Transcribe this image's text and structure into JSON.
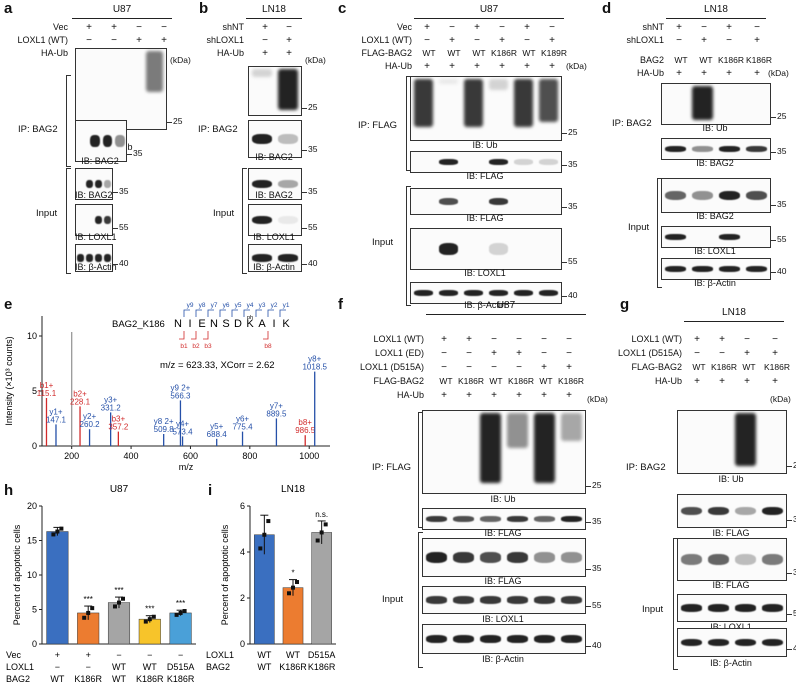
{
  "panels": {
    "a": {
      "label": "a",
      "cell_line": "U87",
      "rows": [
        {
          "label": "Vec",
          "signs": [
            "+",
            "+",
            "−",
            "−"
          ]
        },
        {
          "label": "LOXL1 (WT)",
          "signs": [
            "−",
            "−",
            "+",
            "+"
          ]
        },
        {
          "label": "HA-Ub",
          "signs": [
            "−",
            "+",
            "−",
            "+"
          ]
        }
      ],
      "kda": "(kDa)",
      "ip_label": "IP: BAG2",
      "input_label": "Input",
      "blots": [
        {
          "ib": "IB: Ub",
          "mw": "25"
        },
        {
          "ib": "IB: BAG2",
          "mw": "35"
        },
        {
          "ib": "IB: BAG2",
          "mw": "35"
        },
        {
          "ib": "IB: LOXL1",
          "mw": "55"
        },
        {
          "ib": "IB: β-Actin",
          "mw": "40"
        }
      ]
    },
    "b": {
      "label": "b",
      "cell_line": "LN18",
      "rows": [
        {
          "label": "shNT",
          "signs": [
            "+",
            "−"
          ]
        },
        {
          "label": "shLOXL1",
          "signs": [
            "−",
            "+"
          ]
        },
        {
          "label": "HA-Ub",
          "signs": [
            "+",
            "+"
          ]
        }
      ],
      "kda": "(kDa)",
      "ip_label": "IP: BAG2",
      "input_label": "Input",
      "blots": [
        {
          "ib": "IB: Ub",
          "mw": "25"
        },
        {
          "ib": "IB: BAG2",
          "mw": "35"
        },
        {
          "ib": "IB: BAG2",
          "mw": "35"
        },
        {
          "ib": "IB: LOXL1",
          "mw": "55"
        },
        {
          "ib": "IB: β-Actin",
          "mw": "40"
        }
      ]
    },
    "c": {
      "label": "c",
      "cell_line": "U87",
      "rows": [
        {
          "label": "Vec",
          "signs": [
            "+",
            "−",
            "+",
            "−",
            "+",
            "−"
          ]
        },
        {
          "label": "LOXL1 (WT)",
          "signs": [
            "−",
            "+",
            "−",
            "+",
            "−",
            "+"
          ]
        },
        {
          "label": "FLAG-BAG2",
          "signs": [
            "WT",
            "WT",
            "WT",
            "K186R",
            "WT",
            "K189R"
          ]
        },
        {
          "label": "HA-Ub",
          "signs": [
            "+",
            "+",
            "+",
            "+",
            "+",
            "+"
          ]
        }
      ],
      "kda": "(kDa)",
      "ip_label": "IP: FLAG",
      "input_label": "Input",
      "blots": [
        {
          "ib": "IB: Ub",
          "mw": "25"
        },
        {
          "ib": "IB: FLAG",
          "mw": "35"
        },
        {
          "ib": "IB: FLAG",
          "mw": "35"
        },
        {
          "ib": "IB: LOXL1",
          "mw": "55"
        },
        {
          "ib": "IB: β-Actin",
          "mw": "40"
        }
      ]
    },
    "d": {
      "label": "d",
      "cell_line": "LN18",
      "rows": [
        {
          "label": "shNT",
          "signs": [
            "+",
            "−",
            "+",
            "−"
          ]
        },
        {
          "label": "shLOXL1",
          "signs": [
            "−",
            "+",
            "−",
            "+"
          ]
        },
        {
          "label": "BAG2",
          "signs": [
            "WT",
            "WT",
            "K186R",
            "K186R"
          ]
        },
        {
          "label": "HA-Ub",
          "signs": [
            "+",
            "+",
            "+",
            "+"
          ]
        }
      ],
      "kda": "(kDa)",
      "ip_label": "IP: BAG2",
      "input_label": "Input",
      "blots": [
        {
          "ib": "IB: Ub",
          "mw": "25"
        },
        {
          "ib": "IB: BAG2",
          "mw": "35"
        },
        {
          "ib": "IB: BAG2",
          "mw": "35"
        },
        {
          "ib": "IB: LOXL1",
          "mw": "55"
        },
        {
          "ib": "IB: β-Actin",
          "mw": "40"
        }
      ]
    },
    "e": {
      "label": "e",
      "peptide_name": "BAG2_K186",
      "sequence": [
        "N",
        "I",
        "E",
        "N",
        "S",
        "D",
        "K",
        "A",
        "I",
        "K"
      ],
      "ph": "ph",
      "y_ions": [
        "y9",
        "y8",
        "y7",
        "y6",
        "y5",
        "y4",
        "y3",
        "y2",
        "y1"
      ],
      "b_ions": [
        "b1",
        "b2",
        "b3",
        "b8"
      ],
      "mz_info": "m/z = 623.33, XCorr = 2.62",
      "ylabel": "Intensity (×10³ counts)",
      "xlabel": "m/z",
      "xticks": [
        "200",
        "400",
        "600",
        "800",
        "1000"
      ],
      "yticks": [
        "0",
        "5",
        "10"
      ],
      "peaks": [
        {
          "mz": 115.1,
          "rel": 0.4,
          "label": "b1+",
          "value": "115.1",
          "color": "#d12a2a"
        },
        {
          "mz": 147.1,
          "rel": 0.18,
          "label": "y1+",
          "value": "147.1",
          "color": "#2550a8"
        },
        {
          "mz": 200.0,
          "rel": 0.95,
          "label": "",
          "value": "",
          "color": "#999999"
        },
        {
          "mz": 228.1,
          "rel": 0.33,
          "label": "b2+",
          "value": "228.1",
          "color": "#d12a2a"
        },
        {
          "mz": 260.2,
          "rel": 0.14,
          "label": "y2+",
          "value": "260.2",
          "color": "#2550a8"
        },
        {
          "mz": 331.2,
          "rel": 0.28,
          "label": "y3+",
          "value": "331.2",
          "color": "#2550a8"
        },
        {
          "mz": 357.2,
          "rel": 0.12,
          "label": "b3+",
          "value": "357.2",
          "color": "#d12a2a"
        },
        {
          "mz": 509.8,
          "rel": 0.1,
          "label": "y8 2+",
          "value": "509.8",
          "color": "#2550a8"
        },
        {
          "mz": 566.3,
          "rel": 0.38,
          "label": "y9 2+",
          "value": "566.3",
          "color": "#2550a8"
        },
        {
          "mz": 573.4,
          "rel": 0.08,
          "label": "y4+",
          "value": "573.4",
          "color": "#2550a8"
        },
        {
          "mz": 688.4,
          "rel": 0.06,
          "label": "y5+",
          "value": "688.4",
          "color": "#2550a8"
        },
        {
          "mz": 775.4,
          "rel": 0.12,
          "label": "y6+",
          "value": "775.4",
          "color": "#2550a8"
        },
        {
          "mz": 889.5,
          "rel": 0.23,
          "label": "y7+",
          "value": "889.5",
          "color": "#2550a8"
        },
        {
          "mz": 986.5,
          "rel": 0.09,
          "label": "b8+",
          "value": "986.5",
          "color": "#d12a2a"
        },
        {
          "mz": 1018.5,
          "rel": 0.62,
          "label": "y8+",
          "value": "1018.5",
          "color": "#2550a8"
        }
      ]
    },
    "f": {
      "label": "f",
      "cell_line": "U87",
      "rows": [
        {
          "label": "LOXL1 (WT)",
          "signs": [
            "+",
            "+",
            "−",
            "−",
            "−",
            "−"
          ]
        },
        {
          "label": "LOXL1 (ED)",
          "signs": [
            "−",
            "−",
            "+",
            "+",
            "−",
            "−"
          ]
        },
        {
          "label": "LOXL1 (D515A)",
          "signs": [
            "−",
            "−",
            "−",
            "−",
            "+",
            "+"
          ]
        },
        {
          "label": "FLAG-BAG2",
          "signs": [
            "WT",
            "K186R",
            "WT",
            "K186R",
            "WT",
            "K186R"
          ]
        },
        {
          "label": "HA-Ub",
          "signs": [
            "+",
            "+",
            "+",
            "+",
            "+",
            "+"
          ]
        }
      ],
      "kda": "(kDa)",
      "ip_label": "IP: FLAG",
      "input_label": "Input",
      "blots": [
        {
          "ib": "IB: Ub",
          "mw": "25"
        },
        {
          "ib": "IB: FLAG",
          "mw": "35"
        },
        {
          "ib": "IB: FLAG",
          "mw": "35"
        },
        {
          "ib": "IB: LOXL1",
          "mw": "55"
        },
        {
          "ib": "IB: β-Actin",
          "mw": "40"
        }
      ]
    },
    "g": {
      "label": "g",
      "cell_line": "LN18",
      "rows": [
        {
          "label": "LOXL1 (WT)",
          "signs": [
            "+",
            "+",
            "−",
            "−"
          ]
        },
        {
          "label": "LOXL1 (D515A)",
          "signs": [
            "−",
            "−",
            "+",
            "+"
          ]
        },
        {
          "label": "FLAG-BAG2",
          "signs": [
            "WT",
            "K186R",
            "WT",
            "K186R"
          ]
        },
        {
          "label": "HA-Ub",
          "signs": [
            "+",
            "+",
            "+",
            "+"
          ]
        }
      ],
      "kda": "(kDa)",
      "ip_label": "IP: BAG2",
      "input_label": "Input",
      "blots": [
        {
          "ib": "IB: Ub",
          "mw": "25"
        },
        {
          "ib": "IB: FLAG",
          "mw": "35"
        },
        {
          "ib": "IB: FLAG",
          "mw": "35"
        },
        {
          "ib": "IB: LOXL1",
          "mw": "55"
        },
        {
          "ib": "IB: β-Actin",
          "mw": "40"
        }
      ]
    }
  },
  "chart_data": [
    {
      "type": "bar",
      "panel": "h",
      "title": "U87",
      "ylabel": "Percent of apoptotic cells",
      "ylim": [
        0,
        20
      ],
      "yticks": [
        0,
        5,
        10,
        15,
        20
      ],
      "row_labels": [
        "Vec",
        "LOXL1",
        "BAG2"
      ],
      "categories": [
        {
          "Vec": "+",
          "LOXL1": "−",
          "BAG2": "WT"
        },
        {
          "Vec": "+",
          "LOXL1": "−",
          "BAG2": "K186R"
        },
        {
          "Vec": "−",
          "LOXL1": "WT",
          "BAG2": "WT"
        },
        {
          "Vec": "−",
          "LOXL1": "WT",
          "BAG2": "K186R"
        },
        {
          "Vec": "−",
          "LOXL1": "D515A",
          "BAG2": "K186R"
        }
      ],
      "values": [
        16.3,
        4.5,
        6.0,
        3.6,
        4.5
      ],
      "errors": [
        0.6,
        1.0,
        0.8,
        0.5,
        0.4
      ],
      "significance": [
        "",
        "***",
        "***",
        "***",
        "***"
      ],
      "colors": [
        "#3a6fc0",
        "#ec7c30",
        "#a5a5a5",
        "#f7c42a",
        "#4aa0d8"
      ]
    },
    {
      "type": "bar",
      "panel": "i",
      "title": "LN18",
      "ylabel": "Percent of apoptotic cells",
      "ylim": [
        0,
        6
      ],
      "yticks": [
        0,
        2,
        4,
        6
      ],
      "row_labels": [
        "LOXL1",
        "BAG2"
      ],
      "categories": [
        {
          "LOXL1": "WT",
          "BAG2": "WT"
        },
        {
          "LOXL1": "WT",
          "BAG2": "K186R"
        },
        {
          "LOXL1": "D515A",
          "BAG2": "K186R"
        }
      ],
      "values": [
        4.75,
        2.45,
        4.85
      ],
      "errors": [
        0.85,
        0.35,
        0.5
      ],
      "significance": [
        "",
        "*",
        "n.s."
      ],
      "colors": [
        "#3a6fc0",
        "#ec7c30",
        "#a5a5a5"
      ]
    }
  ]
}
